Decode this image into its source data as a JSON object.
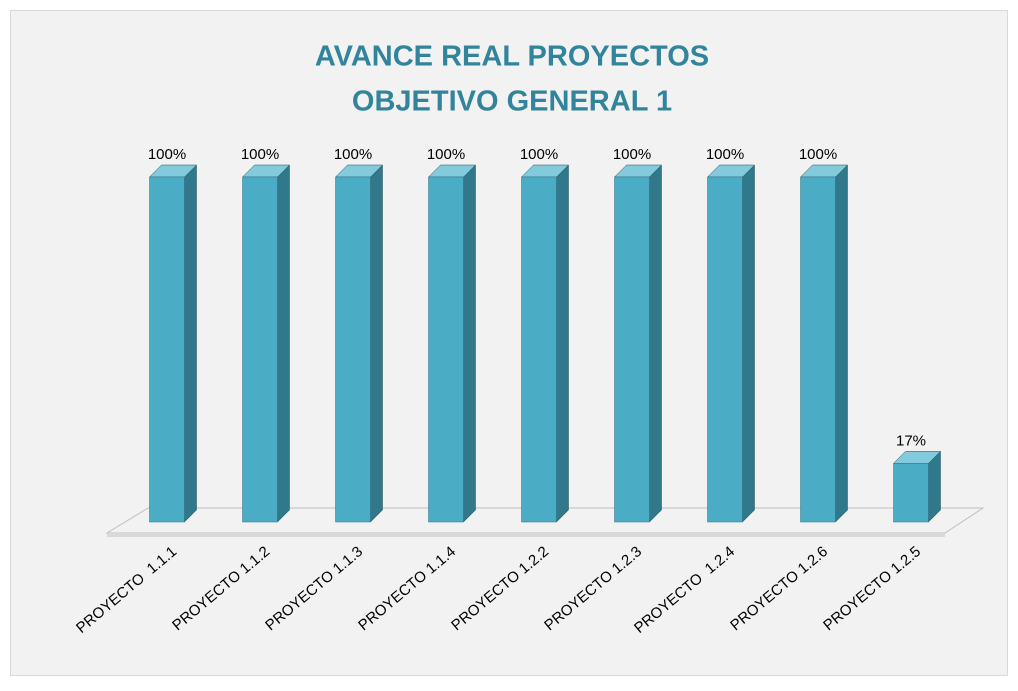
{
  "chart_data": {
    "type": "bar3d",
    "title": [
      "AVANCE REAL PROYECTOS",
      "OBJETIVO GENERAL 1"
    ],
    "categories": [
      "PROYECTO  1.1.1",
      "PROYECTO 1.1.2",
      "PROYECTO 1.1.3",
      "PROYECTO 1.1.4",
      "PROYECTO 1.2.2",
      "PROYECTO 1.2.3",
      "PROYECTO  1.2.4",
      "PROYECTO 1.2.6",
      "PROYECTO 1.2.5"
    ],
    "values": [
      100,
      100,
      100,
      100,
      100,
      100,
      100,
      100,
      17
    ],
    "value_labels": [
      "100%",
      "100%",
      "100%",
      "100%",
      "100%",
      "100%",
      "100%",
      "100%",
      "17%"
    ],
    "color": "#4bacc6"
  }
}
